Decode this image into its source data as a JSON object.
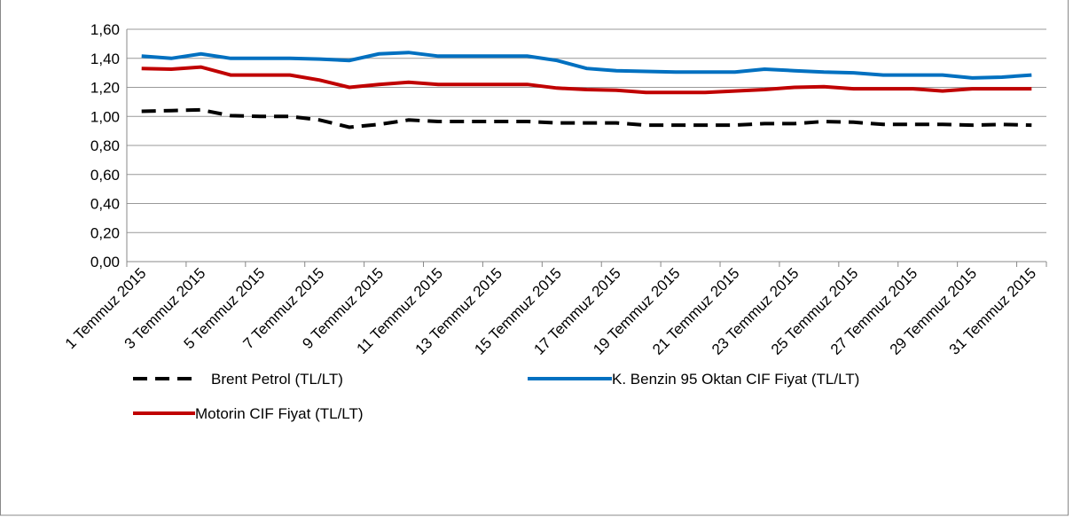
{
  "chart_data": {
    "type": "line",
    "categories": [
      "1 Temmuz 2015",
      null,
      "3 Temmuz 2015",
      null,
      "5 Temmuz 2015",
      null,
      "7 Temmuz 2015",
      null,
      "9 Temmuz 2015",
      null,
      "11 Temmuz 2015",
      null,
      "13 Temmuz 2015",
      null,
      "15 Temmuz 2015",
      null,
      "17 Temmuz 2015",
      null,
      "19 Temmuz 2015",
      null,
      "21 Temmuz 2015",
      null,
      "23 Temmuz 2015",
      null,
      "25 Temmuz 2015",
      null,
      "27 Temmuz 2015",
      null,
      "29 Temmuz 2015",
      null,
      "31 Temmuz 2015"
    ],
    "series": [
      {
        "name": "Brent Petrol (TL/LT)",
        "color": "#000000",
        "dashed": true,
        "values": [
          1.035,
          1.04,
          1.045,
          1.005,
          1.0,
          1.0,
          0.975,
          0.925,
          0.945,
          0.975,
          0.965,
          0.965,
          0.965,
          0.965,
          0.955,
          0.955,
          0.955,
          0.94,
          0.94,
          0.94,
          0.94,
          0.95,
          0.95,
          0.965,
          0.96,
          0.945,
          0.945,
          0.945,
          0.94,
          0.945,
          0.94
        ]
      },
      {
        "name": "K. Benzin 95 Oktan CIF Fiyat (TL/LT)",
        "color": "#0070c0",
        "dashed": false,
        "values": [
          1.415,
          1.4,
          1.43,
          1.4,
          1.4,
          1.4,
          1.395,
          1.385,
          1.43,
          1.44,
          1.415,
          1.415,
          1.415,
          1.415,
          1.385,
          1.33,
          1.315,
          1.31,
          1.305,
          1.305,
          1.305,
          1.325,
          1.315,
          1.305,
          1.3,
          1.285,
          1.285,
          1.285,
          1.265,
          1.27,
          1.285
        ]
      },
      {
        "name": "Motorin CIF Fiyat (TL/LT)",
        "color": "#c00000",
        "dashed": false,
        "values": [
          1.33,
          1.325,
          1.34,
          1.285,
          1.285,
          1.285,
          1.25,
          1.2,
          1.22,
          1.235,
          1.22,
          1.22,
          1.22,
          1.22,
          1.195,
          1.185,
          1.18,
          1.165,
          1.165,
          1.165,
          1.175,
          1.185,
          1.2,
          1.205,
          1.19,
          1.19,
          1.19,
          1.175,
          1.19,
          1.19,
          1.19
        ]
      }
    ],
    "ylim": [
      0,
      1.6
    ],
    "yticks": [
      {
        "value": 0,
        "label": "0,00"
      },
      {
        "value": 0.2,
        "label": "0,20"
      },
      {
        "value": 0.4,
        "label": "0,40"
      },
      {
        "value": 0.6,
        "label": "0,60"
      },
      {
        "value": 0.8,
        "label": "0,80"
      },
      {
        "value": 1.0,
        "label": "1,00"
      },
      {
        "value": 1.2,
        "label": "1,20"
      },
      {
        "value": 1.4,
        "label": "1,40"
      },
      {
        "value": 1.6,
        "label": "1,60"
      }
    ],
    "grid": true,
    "legend": "bottom"
  }
}
